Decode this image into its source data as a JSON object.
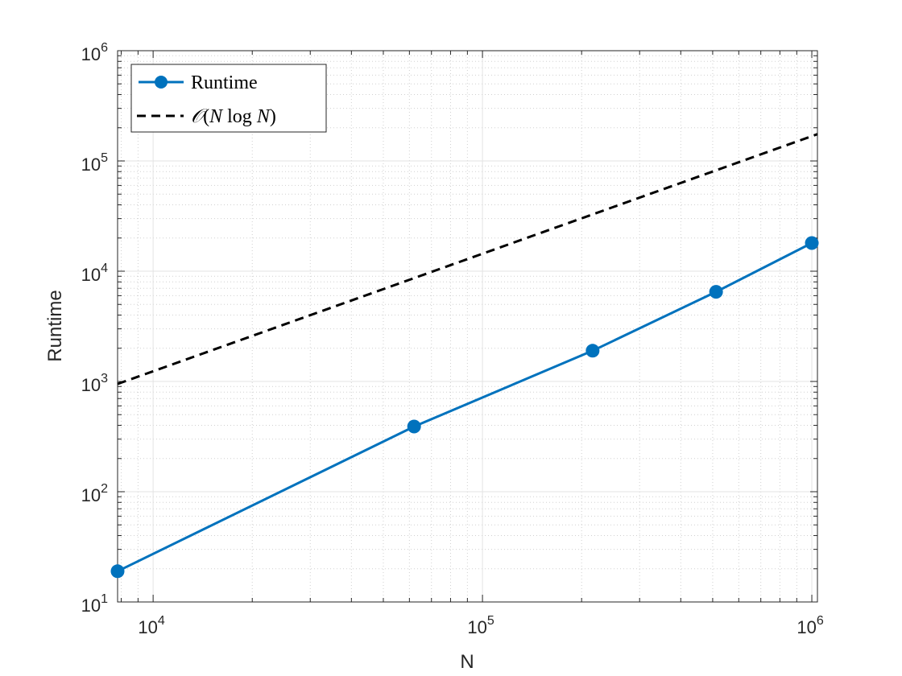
{
  "chart_data": {
    "type": "line",
    "xscale": "log",
    "yscale": "log",
    "xlabel": "N",
    "ylabel": "Runtime",
    "xlim": [
      7800,
      1040000
    ],
    "ylim": [
      10,
      1000000
    ],
    "grid": true,
    "minor_grid": true,
    "legend_position": "top-left",
    "x_ticks": [
      {
        "value": 10000,
        "base": "10",
        "exp": "4"
      },
      {
        "value": 100000,
        "base": "10",
        "exp": "5"
      },
      {
        "value": 1000000,
        "base": "10",
        "exp": "6"
      }
    ],
    "y_ticks": [
      {
        "value": 10,
        "base": "10",
        "exp": "1"
      },
      {
        "value": 100,
        "base": "10",
        "exp": "2"
      },
      {
        "value": 1000,
        "base": "10",
        "exp": "3"
      },
      {
        "value": 10000,
        "base": "10",
        "exp": "4"
      },
      {
        "value": 100000,
        "base": "10",
        "exp": "5"
      },
      {
        "value": 1000000,
        "base": "10",
        "exp": "6"
      }
    ],
    "series": [
      {
        "name": "Runtime",
        "style": "solid",
        "marker": "circle",
        "color": "#0072BD",
        "x": [
          7800,
          62000,
          216000,
          512000,
          1000000
        ],
        "y": [
          19,
          390,
          1900,
          6500,
          18000
        ]
      },
      {
        "name": "O(N log N)",
        "style": "dashed",
        "marker": "none",
        "color": "#000000",
        "x": [
          7800,
          1040000
        ],
        "y": [
          950,
          175000
        ]
      }
    ]
  }
}
